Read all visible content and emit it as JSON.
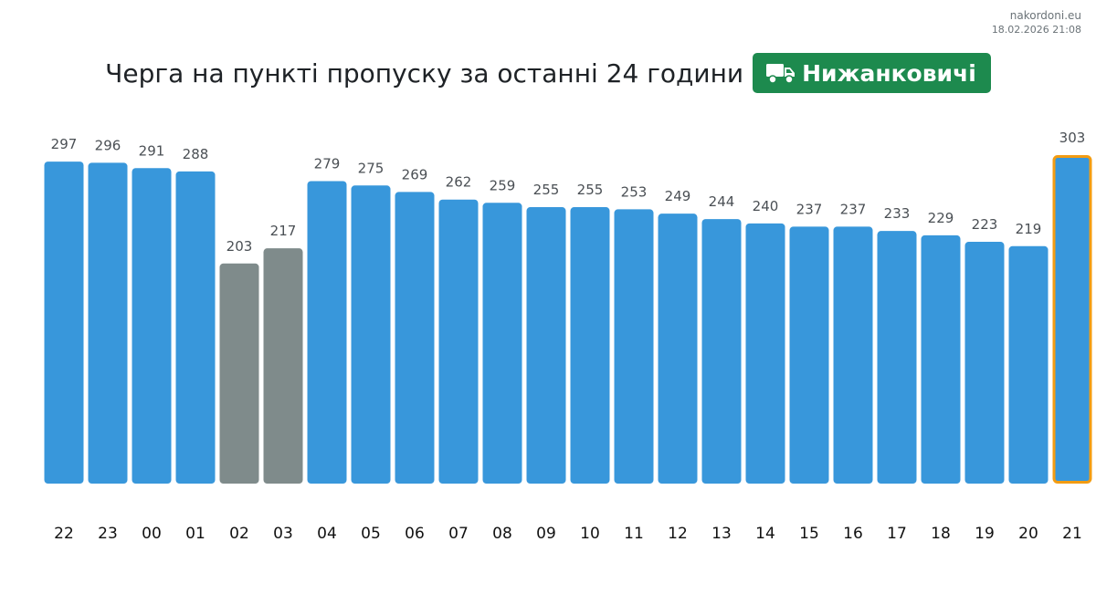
{
  "source": {
    "site": "nakordoni.eu",
    "timestamp": "18.02.2026 21:08"
  },
  "header": {
    "title": "Черга на пункті пропуску за останні 24 години",
    "badge_label": "Нижанковичі",
    "badge_icon": "truck-icon",
    "badge_color": "#1d8a4e"
  },
  "colors": {
    "normal": "#3897db",
    "muted": "#7f8b8b",
    "highlight_outline": "#f39c12"
  },
  "chart_data": {
    "type": "bar",
    "title": "Черга на пункті пропуску за останні 24 години",
    "xlabel": "",
    "ylabel": "",
    "ylim": [
      0,
      303
    ],
    "grid": false,
    "categories": [
      "22",
      "23",
      "00",
      "01",
      "02",
      "03",
      "04",
      "05",
      "06",
      "07",
      "08",
      "09",
      "10",
      "11",
      "12",
      "13",
      "14",
      "15",
      "16",
      "17",
      "18",
      "19",
      "20",
      "21"
    ],
    "values": [
      297,
      296,
      291,
      288,
      203,
      217,
      279,
      275,
      269,
      262,
      259,
      255,
      255,
      253,
      249,
      244,
      240,
      237,
      237,
      233,
      229,
      223,
      219,
      303
    ],
    "bar_status": [
      "normal",
      "normal",
      "normal",
      "normal",
      "muted",
      "muted",
      "normal",
      "normal",
      "normal",
      "normal",
      "normal",
      "normal",
      "normal",
      "normal",
      "normal",
      "normal",
      "normal",
      "normal",
      "normal",
      "normal",
      "normal",
      "normal",
      "normal",
      "highlight"
    ],
    "data_labels": true
  }
}
